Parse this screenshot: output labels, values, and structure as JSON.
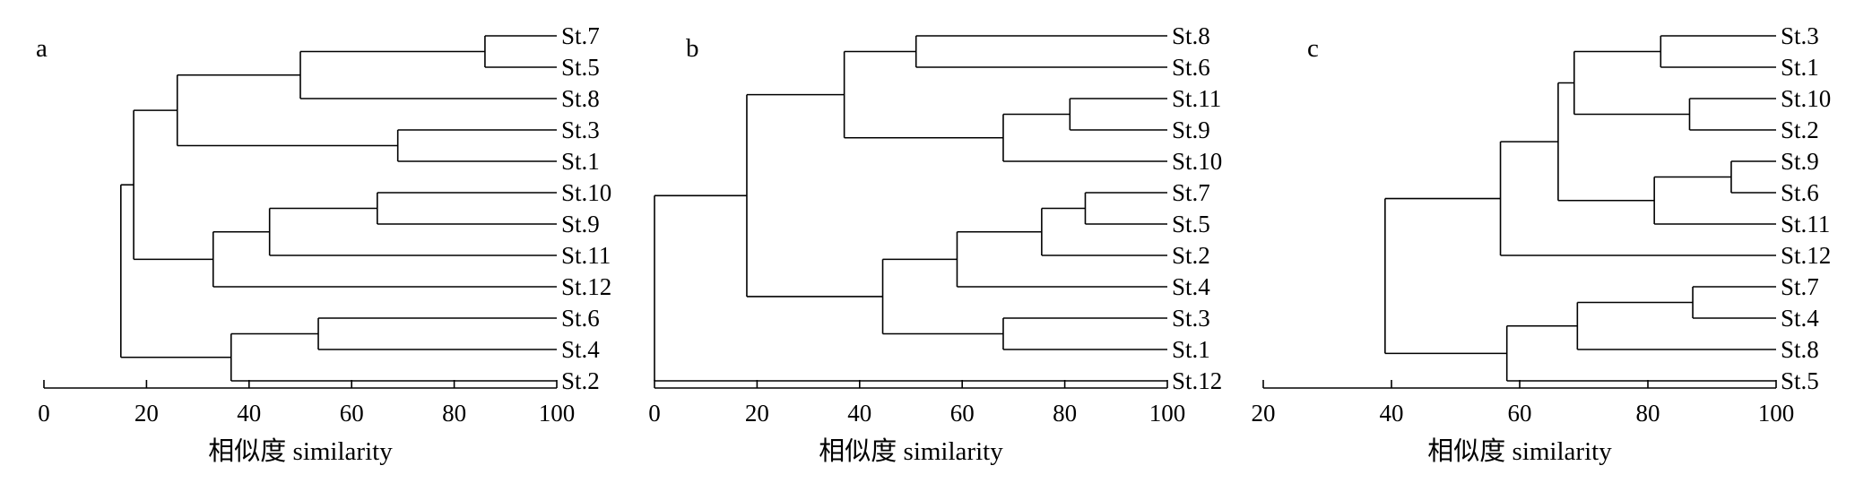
{
  "chart_data": [
    {
      "type": "dendrogram",
      "panel_label": "a",
      "xlabel": "相似度 similarity",
      "xlim": [
        0,
        100
      ],
      "xticks": [
        0,
        20,
        40,
        60,
        80,
        100
      ],
      "leaves": [
        "St.7",
        "St.5",
        "St.8",
        "St.3",
        "St.1",
        "St.10",
        "St.9",
        "St.11",
        "St.12",
        "St.6",
        "St.4",
        "St.2"
      ],
      "tree": {
        "sim": 15,
        "children": [
          {
            "sim": 17.5,
            "children": [
              {
                "sim": 26,
                "children": [
                  {
                    "sim": 50,
                    "children": [
                      {
                        "sim": 86,
                        "children": [
                          "St.7",
                          "St.5"
                        ]
                      },
                      "St.8"
                    ]
                  },
                  {
                    "sim": 69,
                    "children": [
                      "St.3",
                      "St.1"
                    ]
                  }
                ]
              },
              {
                "sim": 33,
                "children": [
                  {
                    "sim": 44,
                    "children": [
                      {
                        "sim": 65,
                        "children": [
                          "St.10",
                          "St.9"
                        ]
                      },
                      "St.11"
                    ]
                  },
                  "St.12"
                ]
              }
            ]
          },
          {
            "sim": 36.5,
            "children": [
              {
                "sim": 53.5,
                "children": [
                  "St.6",
                  "St.4"
                ]
              },
              "St.2"
            ]
          }
        ]
      }
    },
    {
      "type": "dendrogram",
      "panel_label": "b",
      "xlabel": "相似度 similarity",
      "xlim": [
        0,
        100
      ],
      "xticks": [
        0,
        20,
        40,
        60,
        80,
        100
      ],
      "leaves": [
        "St.8",
        "St.6",
        "St.11",
        "St.9",
        "St.10",
        "St.7",
        "St.5",
        "St.2",
        "St.4",
        "St.3",
        "St.1",
        "St.12"
      ],
      "tree": {
        "sim": 0,
        "children": [
          {
            "sim": 18,
            "children": [
              {
                "sim": 37,
                "children": [
                  {
                    "sim": 51,
                    "children": [
                      "St.8",
                      "St.6"
                    ]
                  },
                  {
                    "sim": 68,
                    "children": [
                      {
                        "sim": 81,
                        "children": [
                          "St.11",
                          "St.9"
                        ]
                      },
                      "St.10"
                    ]
                  }
                ]
              },
              {
                "sim": 44.5,
                "children": [
                  {
                    "sim": 59,
                    "children": [
                      {
                        "sim": 75.5,
                        "children": [
                          {
                            "sim": 84,
                            "children": [
                              "St.7",
                              "St.5"
                            ]
                          },
                          "St.2"
                        ]
                      },
                      "St.4"
                    ]
                  },
                  {
                    "sim": 68,
                    "children": [
                      "St.3",
                      "St.1"
                    ]
                  }
                ]
              }
            ]
          },
          "St.12"
        ]
      }
    },
    {
      "type": "dendrogram",
      "panel_label": "c",
      "xlabel": "相似度 similarity",
      "xlim": [
        20,
        100
      ],
      "xticks": [
        20,
        40,
        60,
        80,
        100
      ],
      "leaves": [
        "St.3",
        "St.1",
        "St.10",
        "St.2",
        "St.9",
        "St.6",
        "St.11",
        "St.12",
        "St.7",
        "St.4",
        "St.8",
        "St.5"
      ],
      "tree": {
        "sim": 39,
        "children": [
          {
            "sim": 57,
            "children": [
              {
                "sim": 66,
                "children": [
                  {
                    "sim": 68.5,
                    "children": [
                      {
                        "sim": 82,
                        "children": [
                          "St.3",
                          "St.1"
                        ]
                      },
                      {
                        "sim": 86.5,
                        "children": [
                          "St.10",
                          "St.2"
                        ]
                      }
                    ]
                  },
                  {
                    "sim": 81,
                    "children": [
                      {
                        "sim": 93,
                        "children": [
                          "St.9",
                          "St.6"
                        ]
                      },
                      "St.11"
                    ]
                  }
                ]
              },
              "St.12"
            ]
          },
          {
            "sim": 58,
            "children": [
              {
                "sim": 69,
                "children": [
                  {
                    "sim": 87,
                    "children": [
                      "St.7",
                      "St.4"
                    ]
                  },
                  "St.8"
                ]
              },
              "St.5"
            ]
          }
        ]
      }
    }
  ]
}
